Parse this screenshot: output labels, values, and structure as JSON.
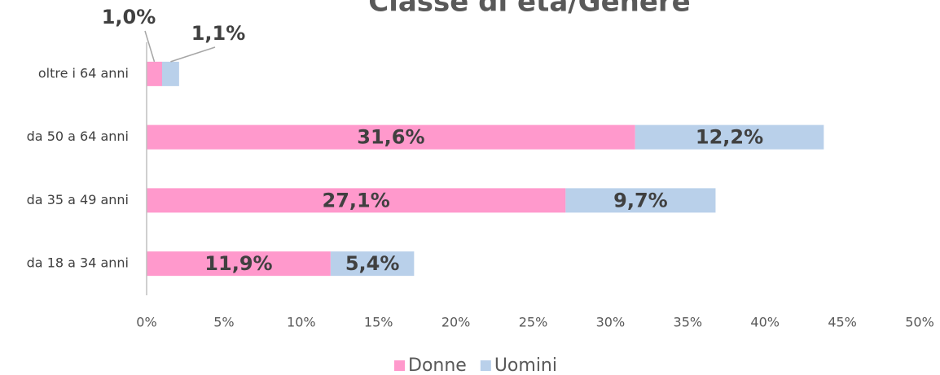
{
  "chart_data": {
    "type": "stacked-bar-horizontal",
    "title": "Classe di età/Genere",
    "categories": [
      "oltre i 64 anni",
      "da 50 a 64 anni",
      "da 35 a 49 anni",
      "da 18 a 34 anni"
    ],
    "series": [
      {
        "name": "Donne",
        "color": "#ff99cc",
        "values": [
          1.0,
          31.6,
          27.1,
          11.9
        ],
        "value_labels": [
          "1,0%",
          "31,6%",
          "27,1%",
          "11,9%"
        ]
      },
      {
        "name": "Uomini",
        "color": "#b9d0ea",
        "values": [
          1.1,
          12.2,
          9.7,
          5.4
        ],
        "value_labels": [
          "1,1%",
          "12,2%",
          "9,7%",
          "5,4%"
        ]
      }
    ],
    "xlim": [
      0,
      50
    ],
    "xticks": [
      {
        "value": 0,
        "label": "0%"
      },
      {
        "value": 5,
        "label": "5%"
      },
      {
        "value": 10,
        "label": "10%"
      },
      {
        "value": 15,
        "label": "15%"
      },
      {
        "value": 20,
        "label": "20%"
      },
      {
        "value": 25,
        "label": "25%"
      },
      {
        "value": 30,
        "label": "30%"
      },
      {
        "value": 35,
        "label": "35%"
      },
      {
        "value": 40,
        "label": "40%"
      },
      {
        "value": 45,
        "label": "45%"
      },
      {
        "value": 50,
        "label": "50%"
      }
    ],
    "legend": "bottom"
  }
}
